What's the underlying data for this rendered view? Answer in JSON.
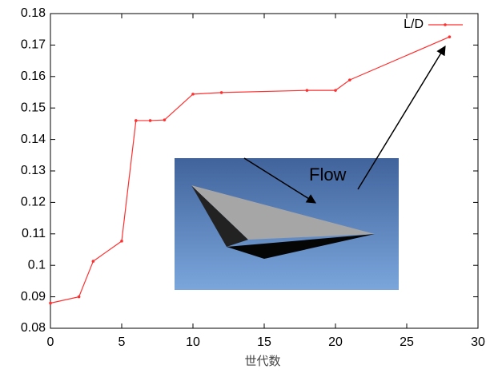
{
  "chart_data": {
    "type": "line",
    "x_label": "世代数",
    "annotation": "Flow",
    "x": [
      0,
      2,
      3,
      5,
      6,
      7,
      8,
      10,
      12,
      18,
      20,
      21,
      28
    ],
    "series": [
      {
        "name": "L/D",
        "color": "#ff3030",
        "values": [
          0.088,
          0.09,
          0.1013,
          0.1077,
          0.146,
          0.146,
          0.1462,
          0.1544,
          0.1549,
          0.1556,
          0.1556,
          0.1589,
          0.1726
        ]
      }
    ],
    "xlim": [
      0,
      30
    ],
    "xticks": [
      0,
      5,
      10,
      15,
      20,
      25,
      30
    ],
    "ylim": [
      0.08,
      0.18
    ],
    "yticks": [
      0.08,
      0.09,
      0.1,
      0.11,
      0.12,
      0.13,
      0.14,
      0.15,
      0.16,
      0.17,
      0.18
    ],
    "legend": "top-right"
  }
}
